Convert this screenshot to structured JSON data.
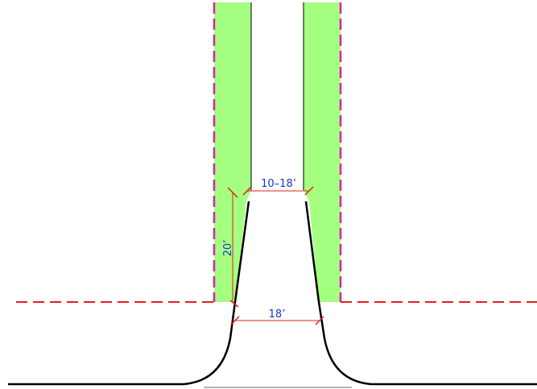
{
  "colors": {
    "background": "#ffffff",
    "green_strip": "#a5ff80",
    "property_line": "#e0209e",
    "street_line": "#e02020",
    "dimension_line": "#e02020",
    "dimension_text": "#1a35c8",
    "curb_line": "#000000",
    "lane_line": "#000000",
    "sidewalk_line": "#9a9a9a"
  },
  "dimensions": {
    "driveway_width_top": "10–18’",
    "driveway_length": "20’",
    "driveway_width_bottom": "18’"
  }
}
